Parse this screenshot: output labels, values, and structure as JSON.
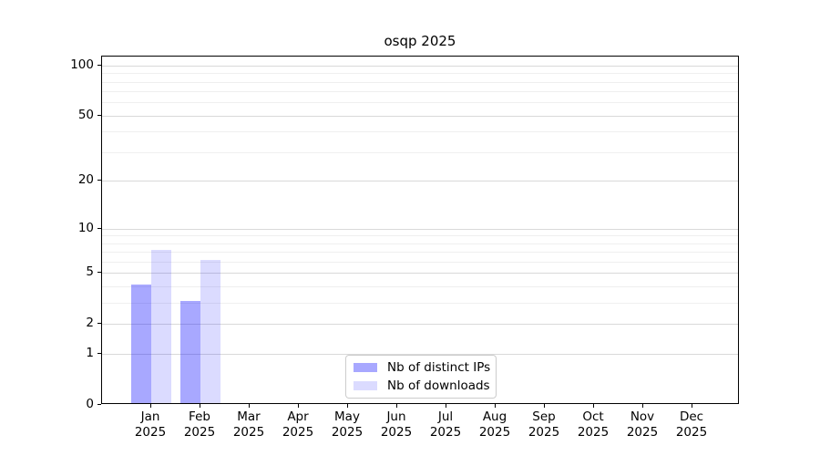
{
  "title": "osqp 2025",
  "legend": {
    "items": [
      {
        "label": "Nb of distinct IPs",
        "color": "rgba(0,0,255,0.34)"
      },
      {
        "label": "Nb of downloads",
        "color": "rgba(0,0,255,0.14)"
      }
    ],
    "position": "lower center"
  },
  "chart_data": {
    "type": "bar",
    "title": "osqp 2025",
    "categories": [
      "Jan",
      "Feb",
      "Mar",
      "Apr",
      "May",
      "Jun",
      "Jul",
      "Aug",
      "Sep",
      "Oct",
      "Nov",
      "Dec"
    ],
    "category_year": "2025",
    "series": [
      {
        "name": "Nb of distinct IPs",
        "color": "rgba(0,0,255,0.34)",
        "values": [
          4,
          3,
          0,
          0,
          0,
          0,
          0,
          0,
          0,
          0,
          0,
          0
        ]
      },
      {
        "name": "Nb of downloads",
        "color": "rgba(0,0,255,0.14)",
        "values": [
          7,
          6,
          0,
          0,
          0,
          0,
          0,
          0,
          0,
          0,
          0,
          0
        ]
      }
    ],
    "xlabel": "",
    "ylabel": "",
    "yscale": "log10(1+v)",
    "ylim": [
      0,
      113
    ],
    "yticks": [
      0,
      1,
      2,
      5,
      10,
      20,
      50,
      100
    ],
    "minor_yticks": [
      3,
      4,
      6,
      7,
      8,
      9,
      30,
      40,
      60,
      70,
      80,
      90
    ],
    "grid": "horizontal",
    "grid_major_color": "#d9d9d9",
    "grid_minor_color": "#efefef",
    "legend_position": "lower center"
  }
}
